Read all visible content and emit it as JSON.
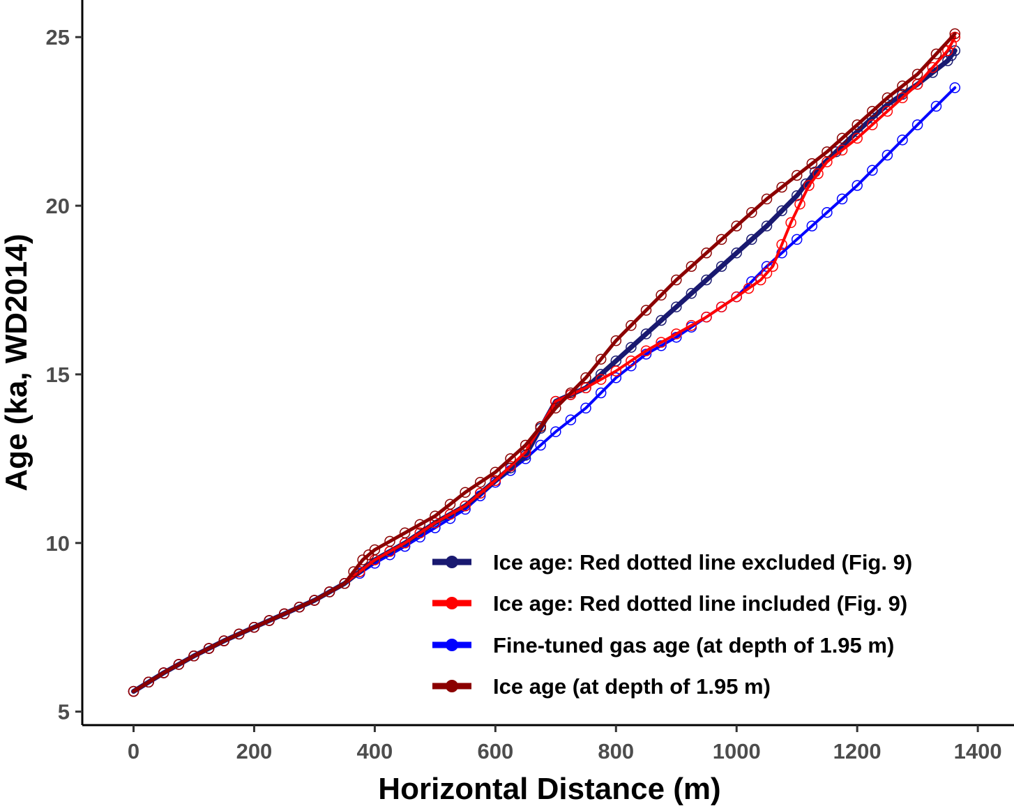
{
  "chart_data": {
    "type": "line",
    "xlabel": "Horizontal Distance (m)",
    "ylabel": "Age (ka, WD2014)",
    "xlim": [
      -85,
      1460
    ],
    "ylim": [
      4.6,
      26.1
    ],
    "x_ticks": [
      0,
      200,
      400,
      600,
      800,
      1000,
      1200,
      1400
    ],
    "y_ticks": [
      5,
      10,
      15,
      20,
      25
    ],
    "x_tick_labels": [
      "0",
      "200",
      "400",
      "600",
      "800",
      "1000",
      "1200",
      "1400"
    ],
    "y_tick_labels": [
      "5",
      "10",
      "15",
      "20",
      "25"
    ],
    "grid": false,
    "legend_position": "bottom-right",
    "series": [
      {
        "name": "Ice age: Red dotted line excluded (Fig. 9)",
        "color": "#191970",
        "x": [
          0,
          50,
          100,
          150,
          200,
          250,
          300,
          350,
          400,
          450,
          500,
          550,
          600,
          650,
          700,
          750,
          800,
          850,
          900,
          950,
          1000,
          1050,
          1100,
          1130,
          1200,
          1250,
          1300,
          1350,
          1362
        ],
        "y": [
          5.6,
          6.15,
          6.65,
          7.1,
          7.5,
          7.9,
          8.3,
          8.8,
          9.5,
          10.0,
          10.6,
          11.1,
          11.85,
          12.6,
          14.2,
          14.6,
          15.4,
          16.2,
          17.0,
          17.8,
          18.6,
          19.4,
          20.3,
          21.0,
          22.2,
          23.0,
          23.6,
          24.3,
          24.6
        ]
      },
      {
        "name": "Ice age: Red dotted line included (Fig. 9)",
        "color": "#ff0000",
        "x": [
          0,
          50,
          100,
          150,
          200,
          250,
          300,
          350,
          400,
          450,
          500,
          550,
          600,
          650,
          700,
          750,
          800,
          850,
          900,
          950,
          1000,
          1040,
          1060,
          1090,
          1120,
          1150,
          1200,
          1250,
          1300,
          1350,
          1362
        ],
        "y": [
          5.6,
          6.15,
          6.65,
          7.1,
          7.5,
          7.9,
          8.3,
          8.8,
          9.5,
          10.0,
          10.6,
          11.1,
          11.85,
          12.7,
          14.2,
          14.6,
          15.1,
          15.7,
          16.2,
          16.7,
          17.3,
          17.8,
          18.2,
          19.5,
          20.6,
          21.3,
          22.0,
          22.8,
          23.6,
          24.6,
          25.0
        ]
      },
      {
        "name": "Fine-tuned gas age (at depth of 1.95 m)",
        "color": "#0000ff",
        "x": [
          0,
          50,
          100,
          150,
          200,
          250,
          300,
          350,
          400,
          450,
          500,
          550,
          600,
          650,
          700,
          750,
          800,
          850,
          900,
          950,
          1000,
          1050,
          1100,
          1150,
          1200,
          1250,
          1300,
          1362
        ],
        "y": [
          5.6,
          6.15,
          6.65,
          7.1,
          7.5,
          7.9,
          8.3,
          8.8,
          9.4,
          9.9,
          10.45,
          11.0,
          11.8,
          12.5,
          13.3,
          14.0,
          14.9,
          15.6,
          16.1,
          16.7,
          17.3,
          18.2,
          19.0,
          19.8,
          20.6,
          21.5,
          22.4,
          23.5
        ]
      },
      {
        "name": "Ice age (at depth of 1.95 m)",
        "color": "#8b0000",
        "x": [
          0,
          50,
          100,
          150,
          200,
          250,
          300,
          350,
          380,
          400,
          450,
          500,
          550,
          600,
          650,
          700,
          750,
          800,
          850,
          900,
          950,
          1000,
          1050,
          1100,
          1150,
          1200,
          1250,
          1300,
          1362
        ],
        "y": [
          5.6,
          6.15,
          6.65,
          7.1,
          7.5,
          7.9,
          8.3,
          8.8,
          9.5,
          9.8,
          10.3,
          10.8,
          11.5,
          12.1,
          12.9,
          14.0,
          14.9,
          16.0,
          16.9,
          17.8,
          18.6,
          19.4,
          20.2,
          20.9,
          21.6,
          22.4,
          23.2,
          23.9,
          25.1
        ]
      }
    ]
  }
}
